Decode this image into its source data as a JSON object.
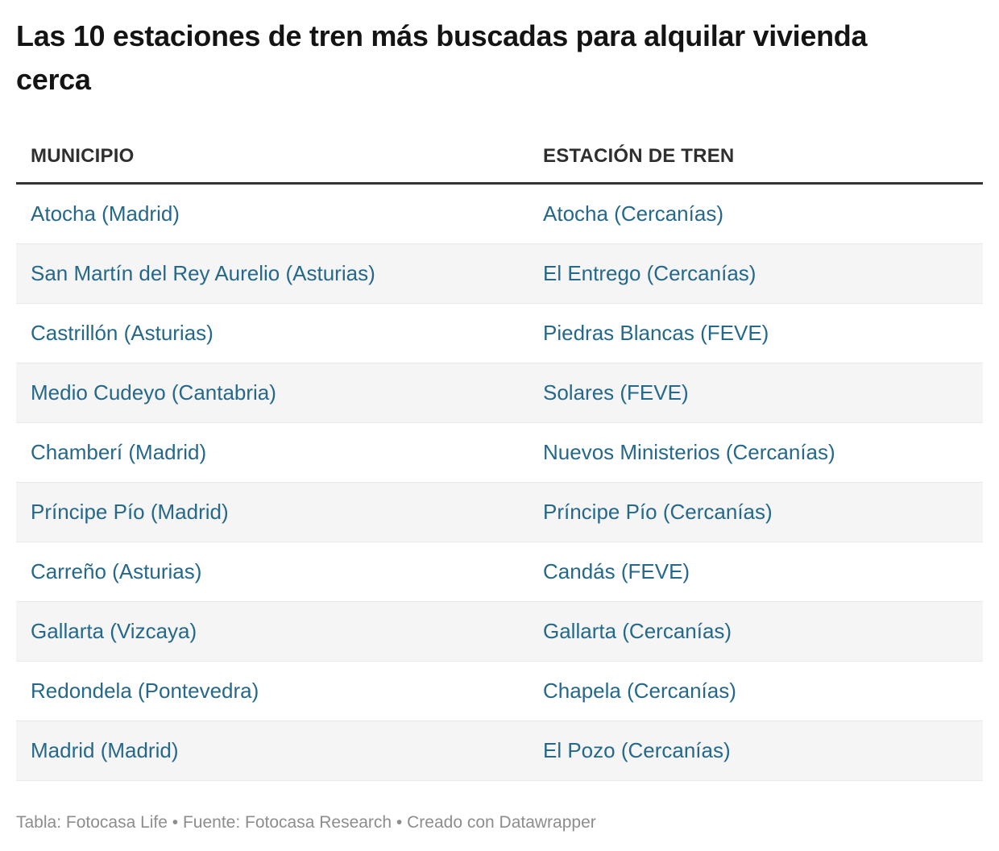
{
  "chart_data": {
    "type": "table",
    "title": "Las 10 estaciones de tren más buscadas para alquilar vivienda cerca",
    "columns": [
      "MUNICIPIO",
      "ESTACIÓN DE TREN"
    ],
    "rows": [
      [
        "Atocha (Madrid)",
        "Atocha (Cercanías)"
      ],
      [
        "San Martín del Rey Aurelio (Asturias)",
        "El Entrego (Cercanías)"
      ],
      [
        "Castrillón (Asturias)",
        "Piedras Blancas (FEVE)"
      ],
      [
        "Medio Cudeyo (Cantabria)",
        "Solares (FEVE)"
      ],
      [
        "Chamberí (Madrid)",
        "Nuevos Ministerios (Cercanías)"
      ],
      [
        "Príncipe Pío (Madrid)",
        "Príncipe Pío (Cercanías)"
      ],
      [
        "Carreño (Asturias)",
        "Candás (FEVE)"
      ],
      [
        "Gallarta (Vizcaya)",
        "Gallarta (Cercanías)"
      ],
      [
        "Redondela (Pontevedra)",
        "Chapela (Cercanías)"
      ],
      [
        "Madrid (Madrid)",
        "El Pozo (Cercanías)"
      ]
    ],
    "footer": "Tabla: Fotocasa Life • Fuente: Fotocasa Research • Creado con Datawrapper",
    "layout": {
      "striped": true,
      "stripe_rows": "even",
      "header_rule": "3px solid",
      "row_separators": true,
      "legend": "none"
    }
  },
  "colors": {
    "title_text": "#141414",
    "header_text": "#2f2f2f",
    "header_border": "#333333",
    "cell_text": "#25688a",
    "stripe": "#f5f5f5",
    "separator": "#e9e9e9",
    "footer_text": "#8d8d8d",
    "page_bg": "#ffffff"
  }
}
